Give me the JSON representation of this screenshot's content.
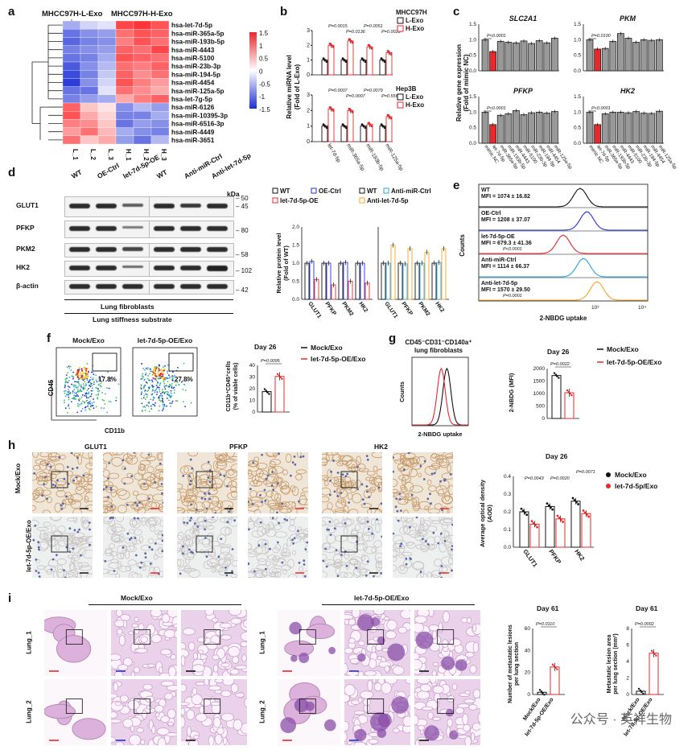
{
  "panels": {
    "a": {
      "label": "a",
      "group_headers": [
        "MHCC97H-L-Exo",
        "MHCC97H-H-Exo"
      ],
      "rows": [
        "hsa-let-7d-5p",
        "hsa-miR-365a-5p",
        "hsa-miR-193b-5p",
        "hsa-miR-4443",
        "hsa-miR-5100",
        "hsa-miR-23b-3p",
        "hsa-miR-194-5p",
        "hsa-miR-4454",
        "hsa-miR-125a-5p",
        "hsa-let-7g-5p",
        "hsa-miR-6126",
        "hsa-miR-10395-3p",
        "hsa-miR-6516-3p",
        "hsa-miR-4449",
        "hsa-miR-3651"
      ],
      "columns": [
        "L_1",
        "L_2",
        "L_3",
        "H_1",
        "H_2",
        "H_3"
      ],
      "colorbar_ticks": [
        "1.5",
        "1",
        "0.5",
        "0",
        "-0.5",
        "-1",
        "-1.5"
      ],
      "colors": {
        "high": "#e8282b",
        "low": "#1d2fd6",
        "mid": "#ffffff"
      },
      "values": [
        [
          -0.6,
          -0.3,
          -0.2,
          1.3,
          1.4,
          1.2
        ],
        [
          -1.0,
          -0.8,
          -0.7,
          1.0,
          1.2,
          1.1
        ],
        [
          -1.1,
          -0.9,
          -0.8,
          0.9,
          1.2,
          1.0
        ],
        [
          -0.9,
          -0.8,
          -0.7,
          1.1,
          1.0,
          1.3
        ],
        [
          -1.0,
          -0.9,
          -0.6,
          1.2,
          1.1,
          1.0
        ],
        [
          -1.2,
          -0.8,
          -0.5,
          1.0,
          0.9,
          1.1
        ],
        [
          -1.3,
          -0.9,
          -0.4,
          1.1,
          0.8,
          1.0
        ],
        [
          -1.4,
          -0.8,
          -0.3,
          1.2,
          0.9,
          0.7
        ],
        [
          -1.0,
          -1.0,
          -0.2,
          1.0,
          0.8,
          0.6
        ],
        [
          -0.9,
          -0.7,
          -0.6,
          0.6,
          0.9,
          1.1
        ],
        [
          1.1,
          0.4,
          0.2,
          -0.8,
          -0.5,
          -0.7
        ],
        [
          1.2,
          0.6,
          0.3,
          -0.9,
          -0.9,
          -0.6
        ],
        [
          0.9,
          0.8,
          0.4,
          -1.0,
          -0.7,
          -0.8
        ],
        [
          0.7,
          1.0,
          0.5,
          -0.6,
          -0.8,
          -0.9
        ],
        [
          1.0,
          0.4,
          0.6,
          -0.7,
          -1.0,
          -0.5
        ]
      ]
    },
    "b": {
      "label": "b",
      "ylabel": "Relative miRNA level\n(Fold of L-Exo)",
      "legend_top": {
        "title": "MHCC97H",
        "items": [
          "L-Exo",
          "H-Exo"
        ]
      },
      "legend_bottom": {
        "title": "Hep3B",
        "items": [
          "L-Exo",
          "H-Exo"
        ]
      },
      "categories": [
        "let-7d-5p",
        "miR-365a-5p",
        "miR-193b-5p",
        "miR-125a-5p"
      ],
      "top_pvalues": [
        "P=0.0015",
        "P=0.0136",
        "P=0.0051",
        "P=0.0023"
      ],
      "bottom_pvalues": [
        "P=0.0007",
        "P=0.0007",
        "P=0.0079",
        "P=0.5565"
      ],
      "chart_data": {
        "type": "bar",
        "series": [
          {
            "name": "MHCC97H L-Exo",
            "values": [
              1,
              1,
              1,
              1
            ]
          },
          {
            "name": "MHCC97H H-Exo",
            "values": [
              2.0,
              2.3,
              1.9,
              1.5
            ]
          },
          {
            "name": "Hep3B L-Exo",
            "values": [
              1,
              1,
              1,
              1
            ]
          },
          {
            "name": "Hep3B H-Exo",
            "values": [
              2.1,
              2.0,
              1.1,
              1.6
            ]
          }
        ],
        "ylim": [
          0,
          3
        ]
      }
    },
    "c": {
      "label": "c",
      "ylabel": "Relative gene expression\n(Fold of mimic NC)",
      "genes": [
        "SLC2A1",
        "PKM",
        "PFKP",
        "HK2"
      ],
      "pvalues": [
        "P<0.0001",
        "P=0.0100",
        "P<0.0001",
        "P<0.0001"
      ],
      "xcategories": [
        "mimic NC",
        "let-7d-5p",
        "miR-365a-5p",
        "miR-193b-5p",
        "miR-4443",
        "miR-5100",
        "miR-23b-3p",
        "miR-194-5p",
        "miR-4454",
        "miR-125a-5p"
      ],
      "chart_data": {
        "type": "bar",
        "ylim": [
          0,
          1.5
        ],
        "series": [
          {
            "name": "SLC2A1",
            "values": [
              1.0,
              0.62,
              0.95,
              0.92,
              0.9,
              0.96,
              0.88,
              0.97,
              0.9,
              1.05
            ]
          },
          {
            "name": "PKM",
            "values": [
              1.0,
              0.7,
              0.72,
              0.95,
              1.2,
              1.05,
              0.92,
              1.0,
              0.98,
              1.0
            ]
          },
          {
            "name": "PFKP",
            "values": [
              1.0,
              0.6,
              0.9,
              0.95,
              1.05,
              0.92,
              0.98,
              1.0,
              0.97,
              1.02
            ]
          },
          {
            "name": "HK2",
            "values": [
              1.0,
              0.6,
              0.95,
              1.0,
              1.0,
              0.98,
              1.02,
              0.97,
              0.96,
              1.03
            ]
          }
        ]
      }
    },
    "d": {
      "label": "d",
      "lanes_left": [
        "WT",
        "OE-Ctrl",
        "let-7d-5p-OE"
      ],
      "lanes_right": [
        "WT",
        "Anti-miR-Ctrl",
        "Anti-let-7d-5p"
      ],
      "kda": "kDa",
      "proteins": [
        "GLUT1",
        "PFKP",
        "PKM2",
        "HK2",
        "β-actin"
      ],
      "markers": [
        "50",
        "45",
        "80",
        "58",
        "102",
        "42"
      ],
      "caption1": "Lung fibroblasts",
      "caption2": "Lung stiffness substrate",
      "ylabel": "Relative protein level\n(Fold of WT)",
      "legend_left": [
        "WT",
        "OE-Ctrl",
        "let-7d-5p-OE"
      ],
      "legend_right": [
        "WT",
        "Anti-miR-Ctrl",
        "Anti-let-7d-5p"
      ],
      "xcategories": [
        "GLUT1",
        "PFKP",
        "PKM2",
        "HK2"
      ],
      "chart_data": {
        "type": "bar",
        "ylim": [
          0,
          2
        ],
        "series": [
          {
            "name": "WT",
            "values": [
              1,
              1,
              1,
              1
            ]
          },
          {
            "name": "OE-Ctrl",
            "values": [
              1.05,
              1.0,
              1.02,
              1.0
            ]
          },
          {
            "name": "let-7d-5p-OE",
            "values": [
              0.55,
              0.4,
              0.5,
              0.45
            ]
          },
          {
            "name": "WT",
            "values": [
              1,
              1,
              1,
              1
            ]
          },
          {
            "name": "Anti-miR-Ctrl",
            "values": [
              1.0,
              0.98,
              1.0,
              1.02
            ]
          },
          {
            "name": "Anti-let-7d-5p",
            "values": [
              1.5,
              1.4,
              1.3,
              1.4
            ]
          }
        ]
      }
    },
    "e": {
      "label": "e",
      "ylabel": "Counts",
      "xlabel": "2-NBDG uptake",
      "tracks": [
        {
          "name": "WT",
          "mfi": "MFI = 1074 ± 16.82",
          "p": "",
          "color": "#111111"
        },
        {
          "name": "OE-Ctrl",
          "mfi": "MFI = 1208 ± 37.07",
          "p": "",
          "color": "#2330d8"
        },
        {
          "name": "let-7d-5p-OE",
          "mfi": "MFI = 679.3 ± 41.36",
          "p": "P<0.0001",
          "color": "#e8282b"
        },
        {
          "name": "Anti-miR-Ctrl",
          "mfi": "MFI = 1114 ± 66.37",
          "p": "",
          "color": "#27a7e0"
        },
        {
          "name": "Anti-let-7d-5p",
          "mfi": "MFI = 1570 ± 29.50",
          "p": "P=0.0001",
          "color": "#f5a623"
        }
      ],
      "xticks": [
        "10³",
        "10⁴"
      ]
    },
    "f": {
      "label": "f",
      "flow_titles": [
        "Mock/Exo",
        "let-7d-5p-OE/Exo"
      ],
      "gate_values": [
        "17.8%",
        "27.8%"
      ],
      "yaxis": "CD45",
      "xaxis": "CD11b",
      "day": "Day 26",
      "legend": [
        "Mock/Exo",
        "let-7d-5p-OE/Exo"
      ],
      "pvalue": "P=0.0095",
      "ylabel": "CD11b⁺CD45⁺cells\n(% of viable cells)",
      "yticks": [
        "0",
        "10",
        "20",
        "30",
        "40"
      ],
      "chart_data": {
        "type": "bar",
        "categories": [
          "Mock/Exo",
          "let-7d-5p-OE/Exo"
        ],
        "values": [
          17.5,
          30.5
        ],
        "ylim": [
          0,
          40
        ]
      }
    },
    "g": {
      "label": "g",
      "title": "CD45⁻CD31⁻CD140a⁺\nlung fibroblasts",
      "ylabel_hist": "Counts",
      "xlabel_hist": "2-NBDG uptake",
      "day": "Day 26",
      "legend": [
        "Mock/Exo",
        "let-7d-5p-OE/Exo"
      ],
      "pvalue": "P=0.0022",
      "ylabel": "2-NBDG (MFI)",
      "yticks": [
        "0",
        "500",
        "1000",
        "1500",
        "2000"
      ],
      "chart_data": {
        "type": "bar",
        "categories": [
          "Mock/Exo",
          "let-7d-5p-OE/Exo"
        ],
        "values": [
          1720,
          1030
        ],
        "ylim": [
          0,
          2000
        ]
      }
    },
    "h": {
      "label": "h",
      "stain_titles": [
        "GLUT1",
        "PFKP",
        "HK2"
      ],
      "row_labels": [
        "Mock/Exo",
        "let-7d-5p-OE/Exo"
      ],
      "day": "Day 26",
      "legend": [
        "Mock/Exo",
        "let-7d-5p/Exo"
      ],
      "pvalues": [
        "P=0.0043",
        "P=0.0020",
        "P=0.0071"
      ],
      "ylabel": "Average optical density\n(AOD)",
      "yticks": [
        "0.0",
        "0.1",
        "0.2",
        "0.3",
        "0.4"
      ],
      "xcategories": [
        "GLUT1",
        "PFKP",
        "HK2"
      ],
      "chart_data": {
        "type": "bar",
        "categories": [
          "GLUT1",
          "PFKP",
          "HK2"
        ],
        "series": [
          {
            "name": "Mock/Exo",
            "values": [
              0.2,
              0.23,
              0.26
            ]
          },
          {
            "name": "let-7d-5p/Exo",
            "values": [
              0.13,
              0.16,
              0.19
            ]
          }
        ],
        "ylim": [
          0,
          0.4
        ]
      }
    },
    "i": {
      "label": "i",
      "group_titles": [
        "Mock/Exo",
        "let-7d-5p-OE/Exo"
      ],
      "row_labels": [
        "Lung_1",
        "Lung_2"
      ],
      "plot1": {
        "day": "Day 61",
        "pvalue": "P=0.0110",
        "ylabel": "Number of metastatic lesions\nper lung section",
        "yticks": [
          "0",
          "20",
          "40",
          "60"
        ],
        "chart_data": {
          "type": "bar",
          "categories": [
            "Mock/Exo",
            "let-7d-5p-OE/Exo"
          ],
          "values": [
            2,
            25
          ],
          "ylim": [
            0,
            60
          ]
        }
      },
      "plot2": {
        "day": "Day 61",
        "pvalue": "P=0.0002",
        "ylabel": "Metastatic lesion area\nper lung section (mm²)",
        "yticks": [
          "0",
          "2",
          "4",
          "6",
          "8"
        ],
        "chart_data": {
          "type": "bar",
          "categories": [
            "Mock/Exo",
            "let-7d-5p-OE/Exo"
          ],
          "values": [
            0.4,
            5.0
          ],
          "ylim": [
            0,
            8
          ]
        }
      },
      "xcategories": [
        "Mock/Exo",
        "let-7d-5p-OE/Exo"
      ]
    }
  },
  "watermark": "公众号 · 英祥生物"
}
